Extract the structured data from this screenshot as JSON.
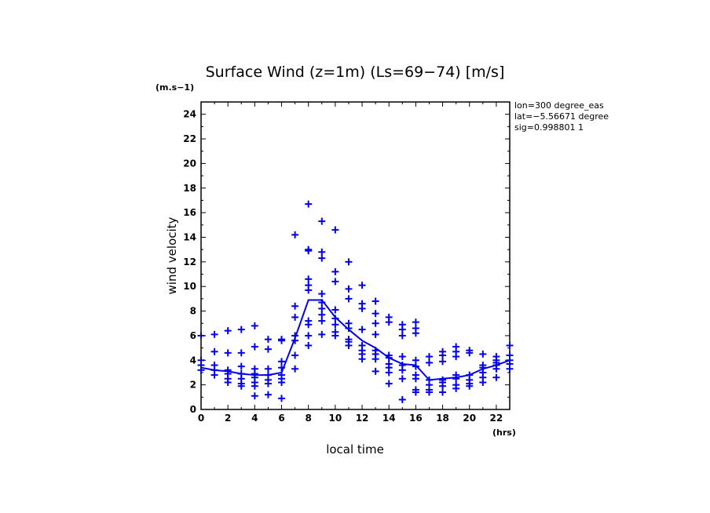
{
  "chart_data": {
    "type": "scatter",
    "title": "Surface Wind (z=1m) (Ls=69−74) [m/s]",
    "y_unit_label": "(m.s−1)",
    "x_unit_label": "(hrs)",
    "xlabel": "local time",
    "ylabel": "wind velocity",
    "xlim": [
      0,
      23
    ],
    "ylim": [
      0,
      25
    ],
    "x_ticks": [
      0,
      2,
      4,
      6,
      8,
      10,
      12,
      14,
      16,
      18,
      20,
      22
    ],
    "y_ticks": [
      0,
      2,
      4,
      6,
      8,
      10,
      12,
      14,
      16,
      18,
      20,
      22,
      24
    ],
    "info_lines": [
      "lon=300 degree_eas",
      "lat=−5.56671 degree",
      "sig=0.998801 1"
    ],
    "color": "#0000ee",
    "mean_line": {
      "x": [
        0,
        1,
        2,
        3,
        4,
        5,
        6,
        7,
        8,
        9,
        10,
        11,
        12,
        13,
        14,
        15,
        16,
        17,
        18,
        19,
        20,
        21,
        22,
        23
      ],
      "y": [
        3.4,
        3.2,
        3.1,
        2.9,
        2.8,
        2.8,
        3.0,
        5.8,
        8.9,
        8.9,
        7.5,
        6.5,
        5.6,
        5.0,
        4.2,
        3.7,
        3.6,
        2.4,
        2.5,
        2.6,
        2.8,
        3.3,
        3.6,
        4.0
      ]
    },
    "points": [
      [
        0,
        6.0
      ],
      [
        0,
        4.0
      ],
      [
        0,
        3.6
      ],
      [
        0,
        3.2
      ],
      [
        1,
        6.1
      ],
      [
        1,
        4.7
      ],
      [
        1,
        3.6
      ],
      [
        1,
        3.2
      ],
      [
        1,
        2.8
      ],
      [
        2,
        6.4
      ],
      [
        2,
        4.6
      ],
      [
        2,
        3.2
      ],
      [
        2,
        2.9
      ],
      [
        2,
        2.5
      ],
      [
        2,
        2.2
      ],
      [
        3,
        6.5
      ],
      [
        3,
        4.6
      ],
      [
        3,
        3.5
      ],
      [
        3,
        2.9
      ],
      [
        3,
        2.5
      ],
      [
        3,
        2.1
      ],
      [
        3,
        1.9
      ],
      [
        4,
        6.8
      ],
      [
        4,
        5.1
      ],
      [
        4,
        3.3
      ],
      [
        4,
        2.9
      ],
      [
        4,
        2.6
      ],
      [
        4,
        2.2
      ],
      [
        4,
        1.9
      ],
      [
        4,
        1.1
      ],
      [
        5,
        5.7
      ],
      [
        5,
        4.9
      ],
      [
        5,
        3.3
      ],
      [
        5,
        2.8
      ],
      [
        5,
        2.4
      ],
      [
        5,
        2.1
      ],
      [
        5,
        1.2
      ],
      [
        6,
        5.7
      ],
      [
        6,
        5.6
      ],
      [
        6,
        3.9
      ],
      [
        6,
        3.4
      ],
      [
        6,
        2.8
      ],
      [
        6,
        2.5
      ],
      [
        6,
        2.2
      ],
      [
        6,
        0.9
      ],
      [
        7,
        14.2
      ],
      [
        7,
        8.4
      ],
      [
        7,
        7.5
      ],
      [
        7,
        6.0
      ],
      [
        7,
        5.6
      ],
      [
        7,
        4.4
      ],
      [
        7,
        3.3
      ],
      [
        8,
        16.7
      ],
      [
        8,
        13.0
      ],
      [
        8,
        12.9
      ],
      [
        8,
        10.6
      ],
      [
        8,
        10.1
      ],
      [
        8,
        9.7
      ],
      [
        8,
        7.2
      ],
      [
        8,
        6.9
      ],
      [
        8,
        6.0
      ],
      [
        8,
        5.2
      ],
      [
        9,
        15.3
      ],
      [
        9,
        12.8
      ],
      [
        9,
        12.3
      ],
      [
        9,
        9.4
      ],
      [
        9,
        8.7
      ],
      [
        9,
        8.2
      ],
      [
        9,
        7.7
      ],
      [
        9,
        7.2
      ],
      [
        9,
        6.1
      ],
      [
        10,
        14.6
      ],
      [
        10,
        11.2
      ],
      [
        10,
        10.4
      ],
      [
        10,
        8.1
      ],
      [
        10,
        7.4
      ],
      [
        10,
        6.9
      ],
      [
        10,
        6.3
      ],
      [
        10,
        6.0
      ],
      [
        11,
        12.0
      ],
      [
        11,
        9.8
      ],
      [
        11,
        9.0
      ],
      [
        11,
        7.0
      ],
      [
        11,
        6.6
      ],
      [
        11,
        5.7
      ],
      [
        11,
        5.5
      ],
      [
        11,
        5.2
      ],
      [
        12,
        10.1
      ],
      [
        12,
        8.6
      ],
      [
        12,
        8.2
      ],
      [
        12,
        6.5
      ],
      [
        12,
        5.2
      ],
      [
        12,
        4.8
      ],
      [
        12,
        4.5
      ],
      [
        12,
        4.1
      ],
      [
        13,
        8.8
      ],
      [
        13,
        7.8
      ],
      [
        13,
        7.0
      ],
      [
        13,
        6.1
      ],
      [
        13,
        4.8
      ],
      [
        13,
        4.5
      ],
      [
        13,
        4.1
      ],
      [
        13,
        3.1
      ],
      [
        14,
        7.5
      ],
      [
        14,
        7.1
      ],
      [
        14,
        4.4
      ],
      [
        14,
        4.2
      ],
      [
        14,
        3.7
      ],
      [
        14,
        3.4
      ],
      [
        14,
        3.0
      ],
      [
        14,
        2.1
      ],
      [
        15,
        6.9
      ],
      [
        15,
        6.5
      ],
      [
        15,
        6.0
      ],
      [
        15,
        4.3
      ],
      [
        15,
        3.6
      ],
      [
        15,
        3.2
      ],
      [
        15,
        2.5
      ],
      [
        15,
        0.8
      ],
      [
        16,
        7.1
      ],
      [
        16,
        6.6
      ],
      [
        16,
        6.2
      ],
      [
        16,
        4.0
      ],
      [
        16,
        3.5
      ],
      [
        16,
        2.8
      ],
      [
        16,
        2.5
      ],
      [
        16,
        1.6
      ],
      [
        16,
        1.4
      ],
      [
        17,
        4.3
      ],
      [
        17,
        3.8
      ],
      [
        17,
        2.4
      ],
      [
        17,
        2.0
      ],
      [
        17,
        1.6
      ],
      [
        17,
        1.4
      ],
      [
        18,
        4.7
      ],
      [
        18,
        4.4
      ],
      [
        18,
        3.9
      ],
      [
        18,
        2.4
      ],
      [
        18,
        2.2
      ],
      [
        18,
        1.9
      ],
      [
        18,
        1.4
      ],
      [
        19,
        5.1
      ],
      [
        19,
        4.7
      ],
      [
        19,
        4.3
      ],
      [
        19,
        2.8
      ],
      [
        19,
        2.5
      ],
      [
        19,
        2.0
      ],
      [
        19,
        1.7
      ],
      [
        20,
        4.8
      ],
      [
        20,
        4.6
      ],
      [
        20,
        2.8
      ],
      [
        20,
        2.4
      ],
      [
        20,
        2.1
      ],
      [
        20,
        1.9
      ],
      [
        21,
        4.5
      ],
      [
        21,
        3.6
      ],
      [
        21,
        3.4
      ],
      [
        21,
        3.0
      ],
      [
        21,
        2.6
      ],
      [
        21,
        2.2
      ],
      [
        22,
        4.3
      ],
      [
        22,
        4.0
      ],
      [
        22,
        3.8
      ],
      [
        22,
        3.6
      ],
      [
        22,
        3.3
      ],
      [
        22,
        2.6
      ],
      [
        23,
        5.2
      ],
      [
        23,
        4.4
      ],
      [
        23,
        4.0
      ],
      [
        23,
        3.7
      ],
      [
        23,
        3.3
      ]
    ]
  }
}
